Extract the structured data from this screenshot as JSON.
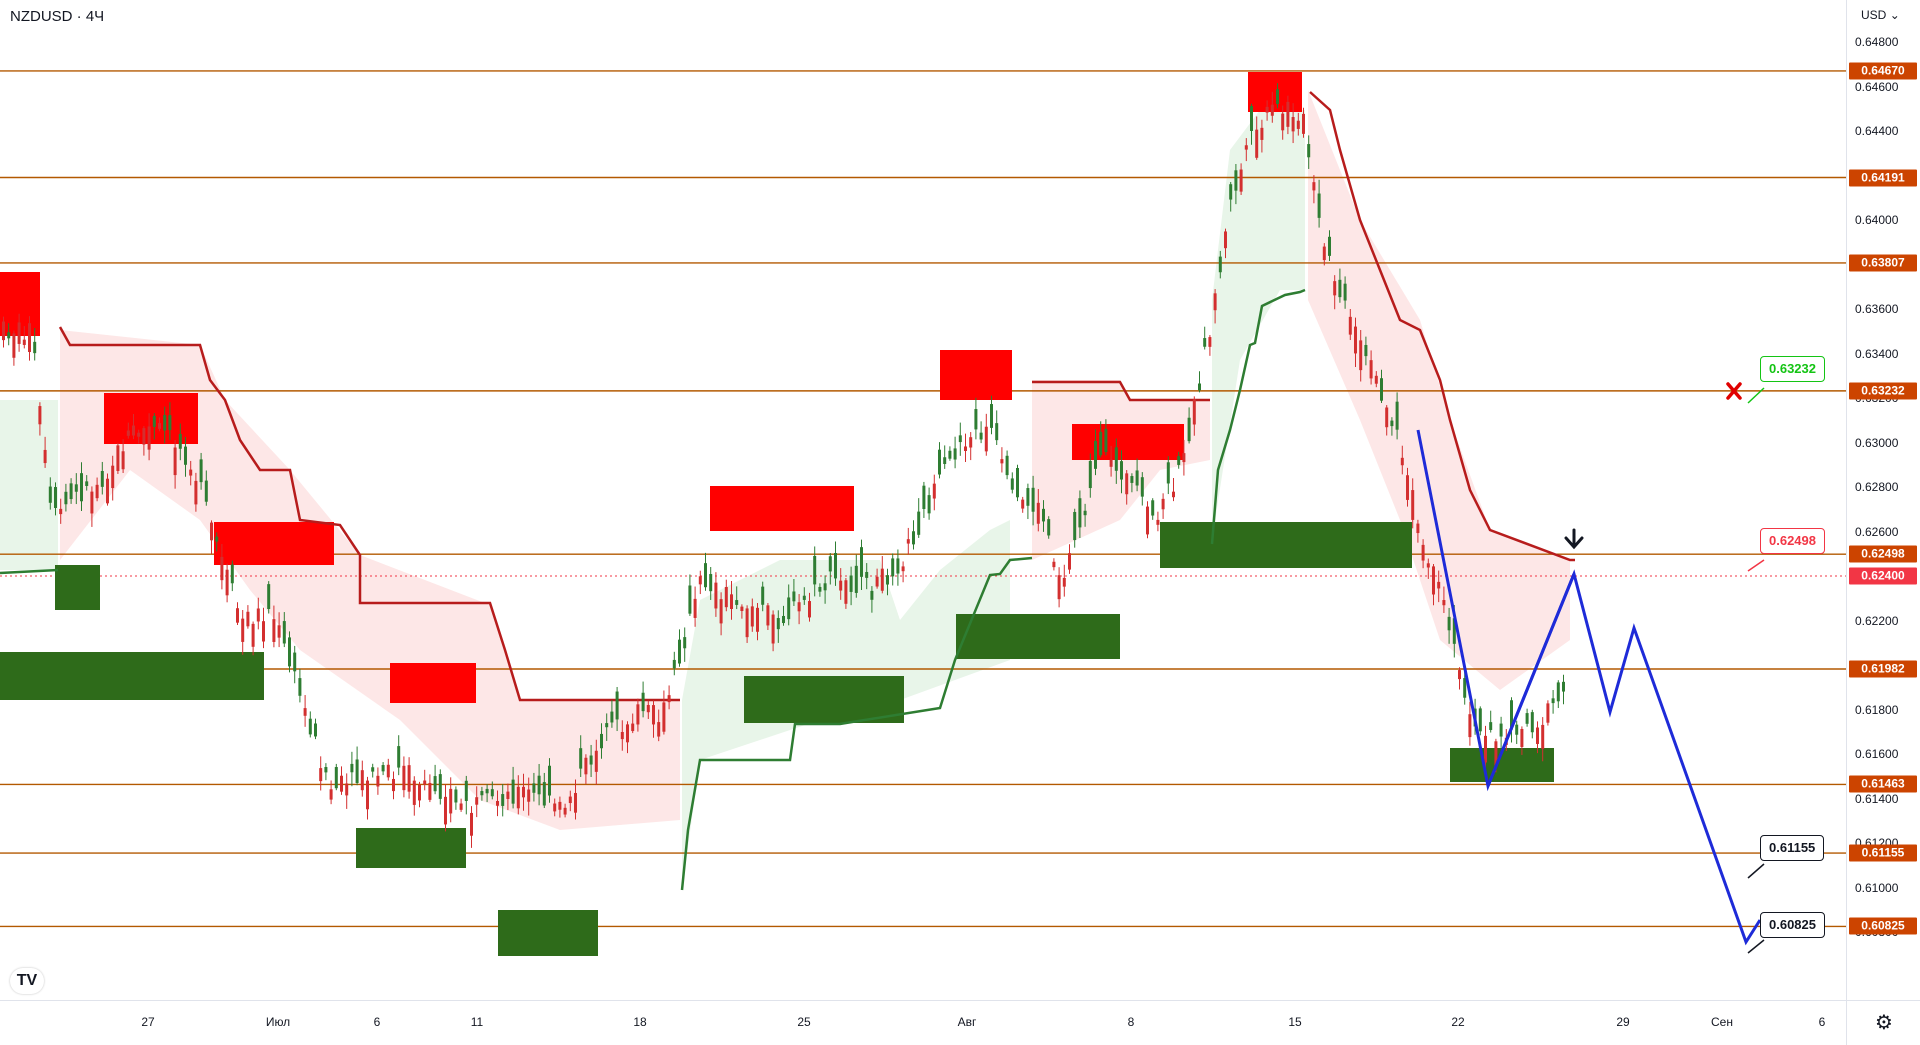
{
  "header": {
    "symbol": "NZDUSD · 4Ч"
  },
  "price_axis": {
    "currency": "USD",
    "ticks": [
      "0.64800",
      "0.64600",
      "0.64400",
      "0.64200",
      "0.64000",
      "0.63800",
      "0.63600",
      "0.63400",
      "0.63200",
      "0.63000",
      "0.62800",
      "0.62600",
      "0.62400",
      "0.62200",
      "0.62000",
      "0.61800",
      "0.61600",
      "0.61400",
      "0.61200",
      "0.61000",
      "0.60800"
    ]
  },
  "levels": [
    {
      "label": "0.64670",
      "price": 0.6467
    },
    {
      "label": "0.64191",
      "price": 0.64191
    },
    {
      "label": "0.63807",
      "price": 0.63807
    },
    {
      "label": "0.63232",
      "price": 0.63232
    },
    {
      "label": "0.62498",
      "price": 0.62498
    },
    {
      "label": "0.61982",
      "price": 0.61982
    },
    {
      "label": "0.61463",
      "price": 0.61463
    },
    {
      "label": "0.61155",
      "price": 0.61155
    },
    {
      "label": "0.60825",
      "price": 0.60825
    }
  ],
  "current_price": {
    "label": "0.62400",
    "price": 0.624
  },
  "callouts": {
    "target_green": "0.63232",
    "target_red": "0.62498",
    "target_1": "0.61155",
    "target_2": "0.60825"
  },
  "time_axis": {
    "labels": [
      "27",
      "Июл",
      "6",
      "11",
      "18",
      "25",
      "Авг",
      "8",
      "15",
      "22",
      "29",
      "Сен",
      "6"
    ]
  },
  "logo_text": "TV",
  "colors": {
    "level_line": "#b35900",
    "bull": "#2e7d32",
    "bear": "#d32f2f",
    "supply_zone": "#ff0000",
    "demand_zone": "#2e6b1a",
    "projection": "#1e2bd8",
    "label_bg": "#cc4400",
    "current_bg": "#f23645"
  }
}
